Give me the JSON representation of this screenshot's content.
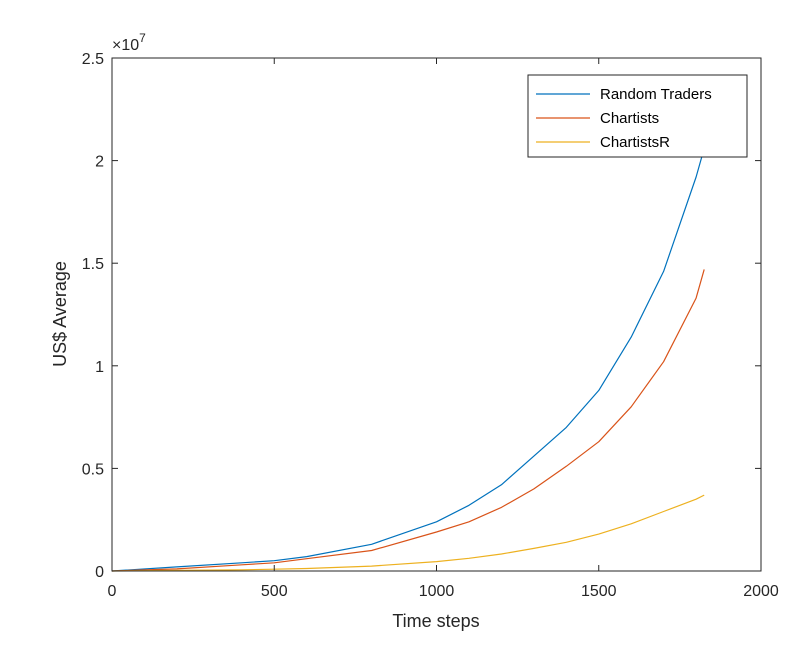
{
  "chart_data": {
    "type": "line",
    "xlabel": "Time steps",
    "ylabel": "US$ Average",
    "xlim": [
      0,
      2000
    ],
    "ylim": [
      0,
      2.5
    ],
    "y_multiplier_base": "×10",
    "y_multiplier_exp": "7",
    "xticks": [
      0,
      500,
      1000,
      1500,
      2000
    ],
    "xtick_labels": [
      "0",
      "500",
      "1000",
      "1500",
      "2000"
    ],
    "yticks": [
      0,
      0.5,
      1,
      1.5,
      2,
      2.5
    ],
    "ytick_labels": [
      "0",
      "0.5",
      "1",
      "1.5",
      "2",
      "2.5"
    ],
    "grid": false,
    "legend_position": "top-right",
    "x": [
      0,
      200,
      400,
      500,
      600,
      800,
      1000,
      1100,
      1200,
      1300,
      1400,
      1500,
      1600,
      1700,
      1800,
      1825
    ],
    "series": [
      {
        "name": "Random Traders",
        "color": "#0072BD",
        "values": [
          0,
          0.02,
          0.04,
          0.05,
          0.07,
          0.13,
          0.24,
          0.32,
          0.42,
          0.56,
          0.7,
          0.88,
          1.14,
          1.46,
          1.92,
          2.06
        ]
      },
      {
        "name": "Chartists",
        "color": "#D95319",
        "values": [
          0,
          0.01,
          0.03,
          0.04,
          0.06,
          0.1,
          0.19,
          0.24,
          0.31,
          0.4,
          0.51,
          0.63,
          0.8,
          1.02,
          1.33,
          1.47
        ]
      },
      {
        "name": "ChartistsR",
        "color": "#EDB120",
        "values": [
          0,
          0.003,
          0.006,
          0.009,
          0.012,
          0.024,
          0.046,
          0.062,
          0.083,
          0.11,
          0.14,
          0.18,
          0.23,
          0.29,
          0.35,
          0.37
        ]
      }
    ]
  }
}
